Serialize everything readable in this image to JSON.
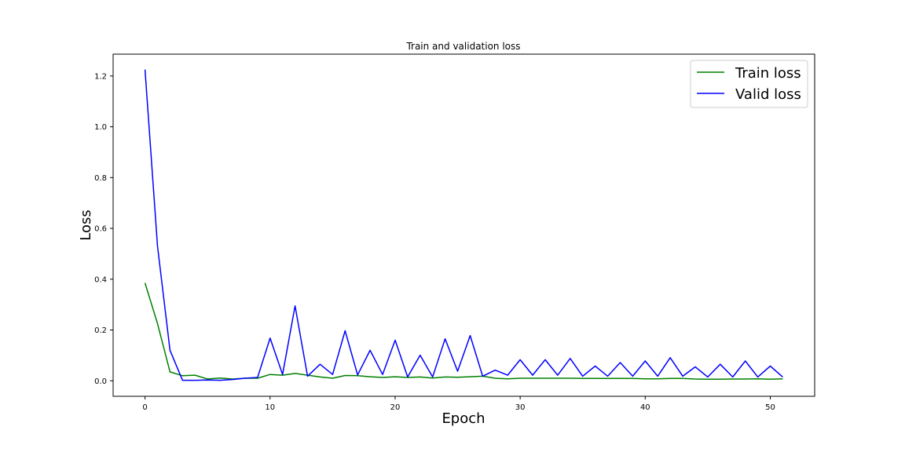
{
  "chart_data": {
    "type": "line",
    "title": "Train and validation loss",
    "xlabel": "Epoch",
    "ylabel": "Loss",
    "xlim": [
      -2.55,
      53.55
    ],
    "ylim": [
      -0.061,
      1.286
    ],
    "xticks": [
      0,
      10,
      20,
      30,
      40,
      50
    ],
    "xtick_labels": [
      "0",
      "10",
      "20",
      "30",
      "40",
      "50"
    ],
    "yticks": [
      0.0,
      0.2,
      0.4,
      0.6,
      0.8,
      1.0,
      1.2
    ],
    "ytick_labels": [
      "0.0",
      "0.2",
      "0.4",
      "0.6",
      "0.8",
      "1.0",
      "1.2"
    ],
    "grid": false,
    "legend_position": "top-right",
    "x": [
      0,
      1,
      2,
      3,
      4,
      5,
      6,
      7,
      8,
      9,
      10,
      11,
      12,
      13,
      14,
      15,
      16,
      17,
      18,
      19,
      20,
      21,
      22,
      23,
      24,
      25,
      26,
      27,
      28,
      29,
      30,
      31,
      32,
      33,
      34,
      35,
      36,
      37,
      38,
      39,
      40,
      41,
      42,
      43,
      44,
      45,
      46,
      47,
      48,
      49,
      50,
      51
    ],
    "series": [
      {
        "name": "Train loss",
        "color": "#008000",
        "values": [
          0.385,
          0.225,
          0.035,
          0.02,
          0.022,
          0.007,
          0.011,
          0.007,
          0.01,
          0.01,
          0.025,
          0.022,
          0.029,
          0.022,
          0.015,
          0.01,
          0.021,
          0.02,
          0.016,
          0.013,
          0.016,
          0.013,
          0.015,
          0.011,
          0.015,
          0.014,
          0.016,
          0.018,
          0.01,
          0.008,
          0.01,
          0.01,
          0.01,
          0.01,
          0.01,
          0.009,
          0.009,
          0.009,
          0.009,
          0.009,
          0.008,
          0.008,
          0.009,
          0.009,
          0.007,
          0.006,
          0.006,
          0.007,
          0.007,
          0.008,
          0.006,
          0.008
        ]
      },
      {
        "name": "Valid loss",
        "color": "#0000ff",
        "values": [
          1.225,
          0.53,
          0.12,
          0.002,
          0.002,
          0.003,
          0.002,
          0.005,
          0.01,
          0.013,
          0.168,
          0.025,
          0.295,
          0.018,
          0.065,
          0.025,
          0.197,
          0.023,
          0.12,
          0.025,
          0.16,
          0.015,
          0.101,
          0.015,
          0.165,
          0.038,
          0.178,
          0.018,
          0.042,
          0.022,
          0.083,
          0.022,
          0.083,
          0.022,
          0.088,
          0.018,
          0.058,
          0.018,
          0.072,
          0.018,
          0.078,
          0.018,
          0.091,
          0.018,
          0.055,
          0.015,
          0.065,
          0.015,
          0.078,
          0.015,
          0.058,
          0.015
        ]
      }
    ]
  }
}
